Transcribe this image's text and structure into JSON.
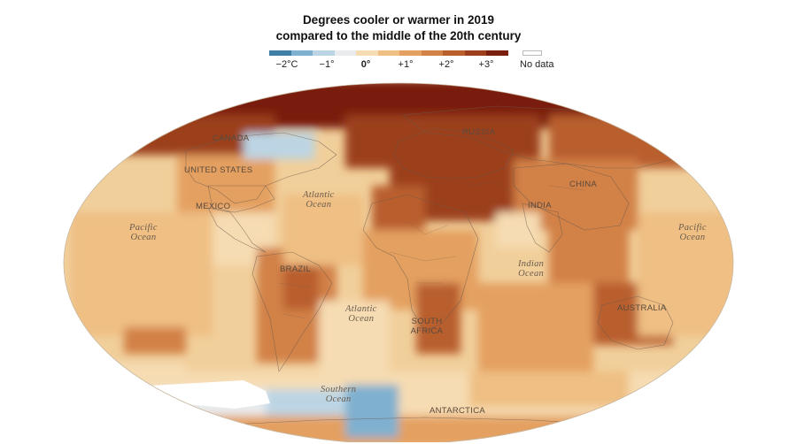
{
  "title": {
    "line1": "Degrees cooler or warmer in 2019",
    "line2": "compared to the middle of the 20th century"
  },
  "legend": {
    "colors": [
      "#3f7fa6",
      "#7fb0cf",
      "#bcd5e4",
      "#e8ecee",
      "#f6dcb2",
      "#efbf83",
      "#e4a060",
      "#d28147",
      "#b95e2d",
      "#9c3f1c",
      "#7a1f0d"
    ],
    "ticks": [
      "−2°C",
      "−1°",
      "0°",
      "+1°",
      "+2°",
      "+3°"
    ],
    "no_data_label": "No data",
    "no_data_color": "#ffffff"
  },
  "map": {
    "projection": "robinson",
    "ocean_base_color": "#f1cf9b",
    "countries": [
      "CANADA",
      "UNITED STATES",
      "MEXICO",
      "BRAZIL",
      "RUSSIA",
      "CHINA",
      "INDIA",
      "SOUTH AFRICA",
      "AUSTRALIA",
      "ANTARCTICA"
    ],
    "oceans": [
      {
        "name": "Pacific Ocean",
        "lines": [
          "Pacific",
          "Ocean"
        ]
      },
      {
        "name": "Atlantic Ocean",
        "lines": [
          "Atlantic",
          "Ocean"
        ]
      },
      {
        "name": "Atlantic Ocean",
        "lines": [
          "Atlantic",
          "Ocean"
        ]
      },
      {
        "name": "Indian Ocean",
        "lines": [
          "Indian",
          "Ocean"
        ]
      },
      {
        "name": "Pacific Ocean",
        "lines": [
          "Pacific",
          "Ocean"
        ]
      },
      {
        "name": "Southern Ocean",
        "lines": [
          "Southern",
          "Ocean"
        ]
      }
    ]
  }
}
